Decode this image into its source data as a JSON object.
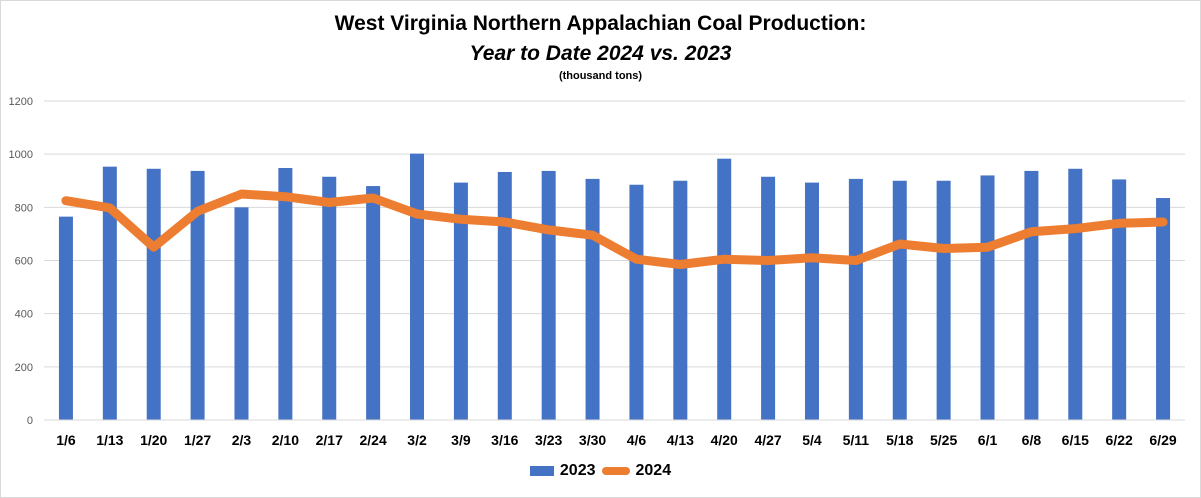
{
  "chart_data": {
    "type": "bar+line",
    "title": "West Virginia Northern Appalachian Coal Production:",
    "subtitle": "Year to Date 2024 vs. 2023",
    "units_note": "(thousand tons)",
    "categories": [
      "1/6",
      "1/13",
      "1/20",
      "1/27",
      "2/3",
      "2/10",
      "2/17",
      "2/24",
      "3/2",
      "3/9",
      "3/16",
      "3/23",
      "3/30",
      "4/6",
      "4/13",
      "4/20",
      "4/27",
      "5/4",
      "5/11",
      "5/18",
      "5/25",
      "6/1",
      "6/8",
      "6/15",
      "6/22",
      "6/29"
    ],
    "series": [
      {
        "name": "2023",
        "type": "bar",
        "color": "#4472c4",
        "values": [
          765,
          953,
          945,
          937,
          800,
          948,
          915,
          880,
          1002,
          893,
          933,
          937,
          907,
          885,
          900,
          983,
          915,
          893,
          907,
          900,
          900,
          920,
          937,
          945,
          905,
          835
        ]
      },
      {
        "name": "2024",
        "type": "line",
        "color": "#ed7d31",
        "values": [
          825,
          798,
          650,
          785,
          850,
          840,
          818,
          835,
          775,
          755,
          745,
          715,
          695,
          605,
          585,
          605,
          600,
          610,
          600,
          662,
          645,
          650,
          708,
          720,
          740,
          745
        ]
      }
    ],
    "ylim": [
      0,
      1200
    ],
    "yticks": [
      0,
      200,
      400,
      600,
      800,
      1000,
      1200
    ],
    "grid": true,
    "legend_position": "bottom"
  }
}
